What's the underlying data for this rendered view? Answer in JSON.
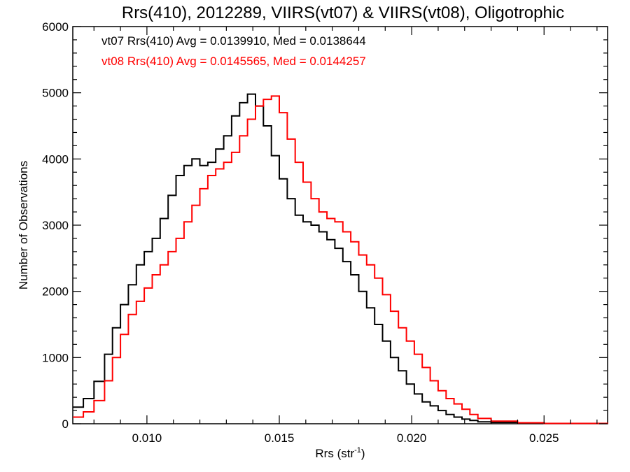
{
  "chart_data": {
    "type": "line",
    "title": "Rrs(410), 2012289, VIIRS(vt07) & VIIRS(vt08), Oligotrophic",
    "xlabel": "Rrs (str",
    "xlabel_sup": "-1",
    "xlabel_close": ")",
    "ylabel": "Number of Observations",
    "xlim": [
      0.0072,
      0.0274
    ],
    "ylim": [
      0,
      6000
    ],
    "x_ticks": [
      0.01,
      0.015,
      0.02,
      0.025
    ],
    "x_tick_labels": [
      "0.010",
      "0.015",
      "0.020",
      "0.025"
    ],
    "y_ticks": [
      0,
      1000,
      2000,
      3000,
      4000,
      5000,
      6000
    ],
    "y_tick_labels": [
      "0",
      "1000",
      "2000",
      "3000",
      "4000",
      "5000",
      "6000"
    ],
    "grid": false,
    "legend_position": "top-left",
    "step": true,
    "series": [
      {
        "name": "vt07",
        "legend": "vt07 Rrs(410) Avg = 0.0139910, Med = 0.0138644",
        "color": "#000000",
        "points": [
          [
            0.0072,
            250
          ],
          [
            0.0076,
            380
          ],
          [
            0.008,
            640
          ],
          [
            0.0084,
            1050
          ],
          [
            0.0087,
            1450
          ],
          [
            0.009,
            1800
          ],
          [
            0.0093,
            2100
          ],
          [
            0.0096,
            2400
          ],
          [
            0.0099,
            2600
          ],
          [
            0.0102,
            2800
          ],
          [
            0.0105,
            3100
          ],
          [
            0.0108,
            3450
          ],
          [
            0.0111,
            3750
          ],
          [
            0.0114,
            3900
          ],
          [
            0.0117,
            4000
          ],
          [
            0.012,
            3900
          ],
          [
            0.0123,
            3950
          ],
          [
            0.0126,
            4150
          ],
          [
            0.0129,
            4350
          ],
          [
            0.0132,
            4650
          ],
          [
            0.0135,
            4850
          ],
          [
            0.0138,
            4980
          ],
          [
            0.0141,
            4800
          ],
          [
            0.0144,
            4500
          ],
          [
            0.0147,
            4050
          ],
          [
            0.015,
            3700
          ],
          [
            0.0153,
            3400
          ],
          [
            0.0156,
            3150
          ],
          [
            0.0159,
            3050
          ],
          [
            0.0162,
            3000
          ],
          [
            0.0165,
            2900
          ],
          [
            0.0168,
            2780
          ],
          [
            0.0171,
            2650
          ],
          [
            0.0174,
            2450
          ],
          [
            0.0177,
            2250
          ],
          [
            0.018,
            2000
          ],
          [
            0.0183,
            1750
          ],
          [
            0.0186,
            1500
          ],
          [
            0.0189,
            1250
          ],
          [
            0.0192,
            1000
          ],
          [
            0.0195,
            800
          ],
          [
            0.0198,
            600
          ],
          [
            0.0201,
            450
          ],
          [
            0.0204,
            330
          ],
          [
            0.0207,
            270
          ],
          [
            0.021,
            200
          ],
          [
            0.0213,
            140
          ],
          [
            0.0216,
            100
          ],
          [
            0.0219,
            70
          ],
          [
            0.0222,
            50
          ],
          [
            0.0225,
            30
          ],
          [
            0.023,
            20
          ],
          [
            0.024,
            10
          ],
          [
            0.025,
            5
          ],
          [
            0.0274,
            0
          ]
        ]
      },
      {
        "name": "vt08",
        "legend": "vt08 Rrs(410) Avg = 0.0145565, Med = 0.0144257",
        "color": "#ff0000",
        "points": [
          [
            0.0072,
            100
          ],
          [
            0.0076,
            180
          ],
          [
            0.008,
            350
          ],
          [
            0.0084,
            650
          ],
          [
            0.0087,
            1000
          ],
          [
            0.009,
            1350
          ],
          [
            0.0093,
            1650
          ],
          [
            0.0096,
            1850
          ],
          [
            0.0099,
            2050
          ],
          [
            0.0102,
            2250
          ],
          [
            0.0105,
            2400
          ],
          [
            0.0108,
            2600
          ],
          [
            0.0111,
            2800
          ],
          [
            0.0114,
            3050
          ],
          [
            0.0117,
            3300
          ],
          [
            0.012,
            3550
          ],
          [
            0.0123,
            3750
          ],
          [
            0.0126,
            3850
          ],
          [
            0.0129,
            3950
          ],
          [
            0.0132,
            4100
          ],
          [
            0.0135,
            4350
          ],
          [
            0.0138,
            4600
          ],
          [
            0.0141,
            4800
          ],
          [
            0.0144,
            4900
          ],
          [
            0.0147,
            4950
          ],
          [
            0.015,
            4700
          ],
          [
            0.0153,
            4300
          ],
          [
            0.0156,
            3950
          ],
          [
            0.0159,
            3650
          ],
          [
            0.0162,
            3400
          ],
          [
            0.0165,
            3200
          ],
          [
            0.0168,
            3100
          ],
          [
            0.0171,
            3050
          ],
          [
            0.0174,
            2900
          ],
          [
            0.0177,
            2750
          ],
          [
            0.018,
            2550
          ],
          [
            0.0183,
            2400
          ],
          [
            0.0186,
            2200
          ],
          [
            0.0189,
            1950
          ],
          [
            0.0192,
            1700
          ],
          [
            0.0195,
            1450
          ],
          [
            0.0198,
            1250
          ],
          [
            0.0201,
            1050
          ],
          [
            0.0204,
            850
          ],
          [
            0.0207,
            650
          ],
          [
            0.021,
            500
          ],
          [
            0.0213,
            380
          ],
          [
            0.0216,
            300
          ],
          [
            0.0219,
            220
          ],
          [
            0.0222,
            140
          ],
          [
            0.0225,
            80
          ],
          [
            0.023,
            40
          ],
          [
            0.024,
            15
          ],
          [
            0.025,
            5
          ],
          [
            0.0274,
            0
          ]
        ]
      }
    ]
  }
}
